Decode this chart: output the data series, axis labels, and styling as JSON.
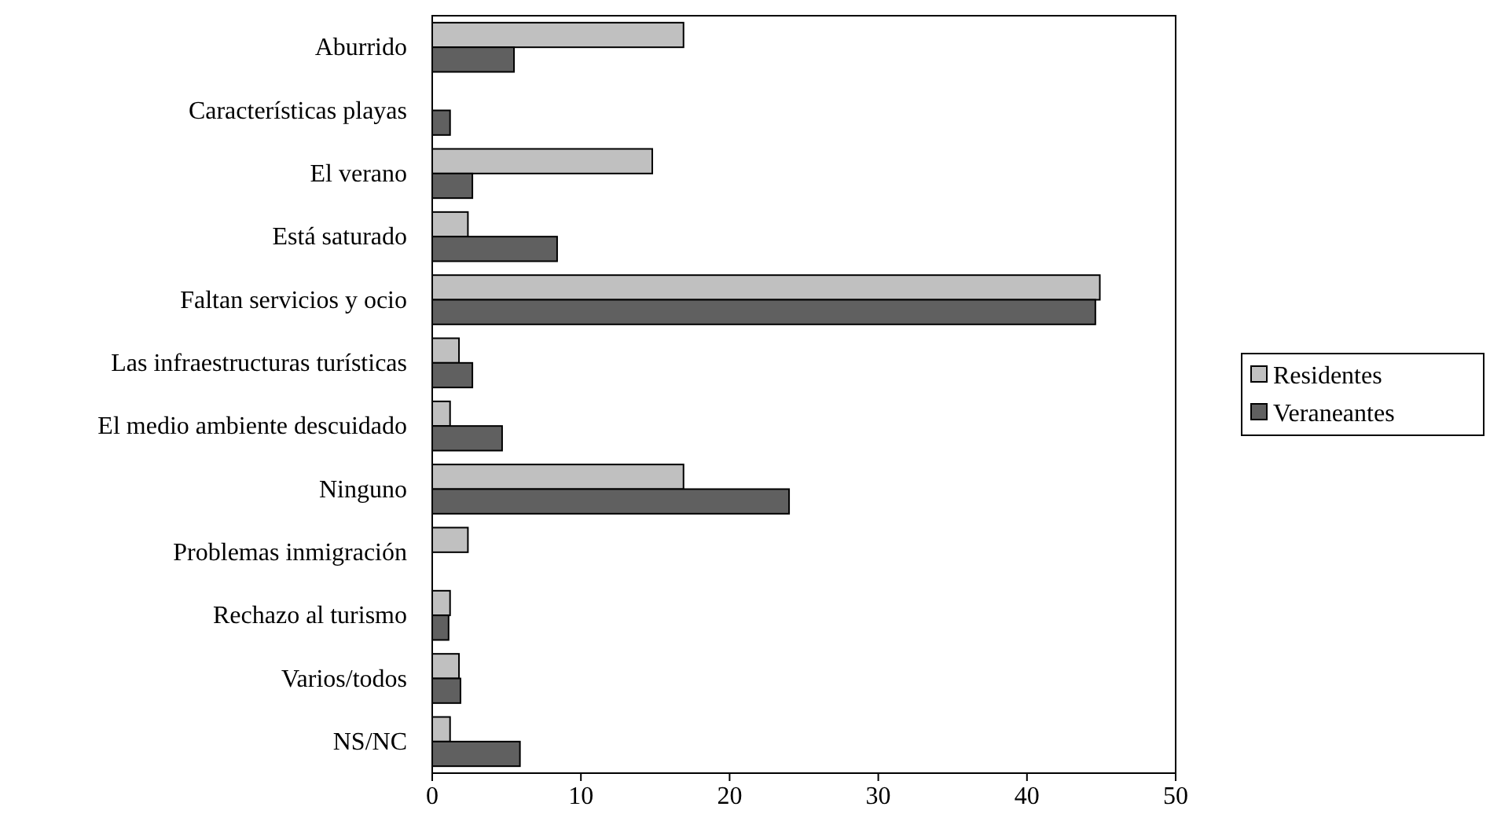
{
  "chart_data": {
    "type": "bar",
    "orientation": "horizontal",
    "categories": [
      "Aburrido",
      "Características playas",
      "El verano",
      "Está saturado",
      "Faltan servicios y ocio",
      "Las infraestructuras turísticas",
      "El medio ambiente descuidado",
      "Ninguno",
      "Problemas inmigración",
      "Rechazo al turismo",
      "Varios/todos",
      "NS/NC"
    ],
    "series": [
      {
        "name": "Residentes",
        "color": "#c0c0c0",
        "values": [
          16.9,
          null,
          14.8,
          2.4,
          44.9,
          1.8,
          1.2,
          16.9,
          2.4,
          1.2,
          1.8,
          1.2
        ]
      },
      {
        "name": "Veraneantes",
        "color": "#606060",
        "values": [
          5.5,
          1.2,
          2.7,
          8.4,
          44.6,
          2.7,
          4.7,
          24.0,
          null,
          1.1,
          1.9,
          5.9
        ]
      }
    ],
    "xlim": [
      0,
      50
    ],
    "xticks": [
      0,
      10,
      20,
      30,
      40,
      50
    ],
    "grid": false,
    "legend": "right"
  }
}
